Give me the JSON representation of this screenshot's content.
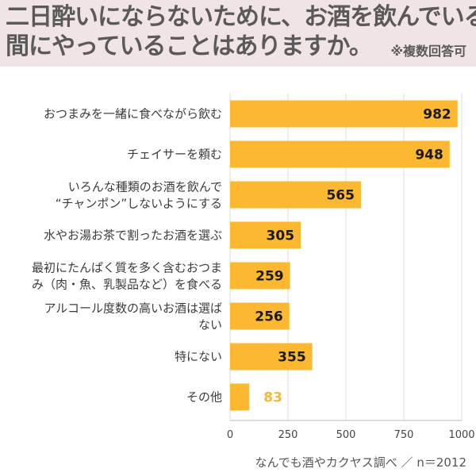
{
  "header": {
    "title_line1": "二日酔いにならないために、お酒を飲んでいる",
    "title_line2": "間にやっていることはありますか。",
    "note": "※複数回答可"
  },
  "footer": {
    "source": "なんでも酒やカクヤス調べ ／ n＝2012"
  },
  "colors": {
    "bar": "#fbb830",
    "header_bg": "#f1e4e4",
    "title_text": "#5a5a5a",
    "value_dark": "#1a1a1a",
    "value_light": "#f5b73a"
  },
  "chart_data": {
    "type": "bar",
    "orientation": "horizontal",
    "categories": [
      [
        "おつまみを一緒に食べながら飲む"
      ],
      [
        "チェイサーを頼む"
      ],
      [
        "いろんな種類のお酒を飲んで",
        "“チャンポン”しないようにする"
      ],
      [
        "水やお湯お茶で割ったお酒を選ぶ"
      ],
      [
        "最初にたんぱく質を多く含むおつま",
        "み（肉・魚、乳製品など）を食べる"
      ],
      [
        "アルコール度数の高いお酒は選ば",
        "ない"
      ],
      [
        "特にない"
      ],
      [
        "その他"
      ]
    ],
    "values": [
      982,
      948,
      565,
      305,
      259,
      256,
      355,
      83
    ],
    "xlim": [
      0,
      1000
    ],
    "xticks": [
      0,
      250,
      500,
      750,
      1000
    ],
    "grid": true,
    "legend": "none"
  }
}
